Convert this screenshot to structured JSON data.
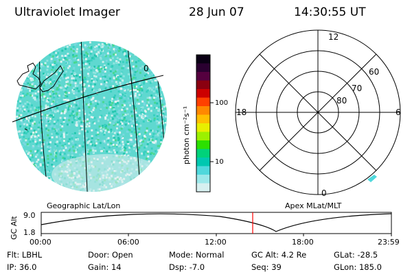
{
  "header": {
    "instrument": "Ultraviolet Imager",
    "date": "28 Jun 07",
    "time": "14:30:55 UT"
  },
  "image_panel": {
    "map_label": "0",
    "subtitle": "Geographic Lat/Lon"
  },
  "colorbar": {
    "unit_label": "photon cm⁻²s⁻¹",
    "ticks": [
      "100",
      "10"
    ],
    "colors": [
      "#0a0014",
      "#2a0030",
      "#55003f",
      "#8a0010",
      "#cc0000",
      "#ff4000",
      "#ff8800",
      "#ffbf00",
      "#e8ef00",
      "#9cf000",
      "#2ce000",
      "#00d27a",
      "#00c8b0",
      "#4fd8dc",
      "#9be8ea",
      "#d7f0f0"
    ]
  },
  "polar_plot": {
    "subtitle": "Apex MLat/MLT",
    "mlt_labels": {
      "top": "12",
      "left": "18",
      "right": "6",
      "bottom": "0"
    },
    "lat_labels": [
      "60",
      "70",
      "80"
    ]
  },
  "timeline": {
    "ylabel": "GC Alt",
    "y_ticks": [
      "9.0",
      "1.8"
    ],
    "x_ticks": [
      "00:00",
      "06:00",
      "12:00",
      "18:00",
      "23:59"
    ],
    "marker_time": "14:30"
  },
  "status": {
    "row1": [
      {
        "label": "Flt:",
        "value": "LBHL"
      },
      {
        "label": "Door:",
        "value": "Open"
      },
      {
        "label": "Mode:",
        "value": "Normal"
      },
      {
        "label": "GC Alt:",
        "value": "4.2 Re"
      },
      {
        "label": "GLat:",
        "value": "-28.5"
      }
    ],
    "row2": [
      {
        "label": "IP:",
        "value": "36.0"
      },
      {
        "label": "Gain:",
        "value": "14"
      },
      {
        "label": "Dsp:",
        "value": "-7.0"
      },
      {
        "label": "Seq:",
        "value": "39"
      },
      {
        "label": "GLon:",
        "value": "185.0"
      }
    ]
  }
}
